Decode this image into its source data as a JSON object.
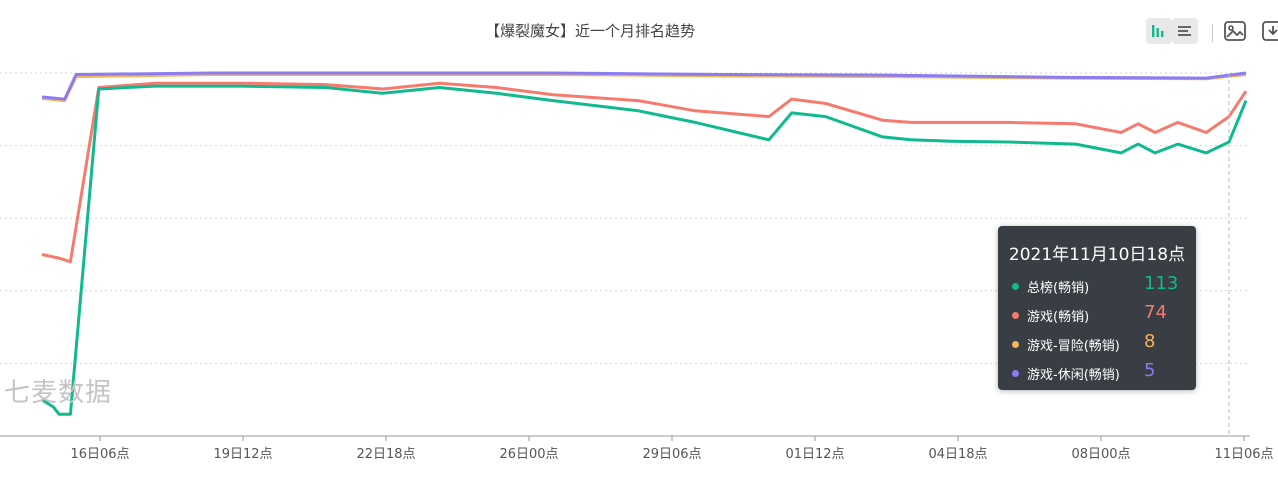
{
  "title": "【爆裂魔女】近一个月排名趋势",
  "watermark": "七麦数据",
  "toolbox": {
    "icons": [
      "bar-chart-icon",
      "list-icon",
      "image-icon",
      "download-icon"
    ]
  },
  "tooltip": {
    "title": "2021年11月10日18点",
    "rows": [
      {
        "name": "总榜(畅销)",
        "value": "113",
        "color": "#11b98e"
      },
      {
        "name": "游戏(畅销)",
        "value": "74",
        "color": "#f47b6e"
      },
      {
        "name": "游戏-冒险(畅销)",
        "value": "8",
        "color": "#f5b35a"
      },
      {
        "name": "游戏-休闲(畅销)",
        "value": "5",
        "color": "#8b7cf0"
      }
    ]
  },
  "chart_data": {
    "type": "line",
    "title": "【爆裂魔女】近一个月排名趋势",
    "x_ticks": [
      "16日06点",
      "19日12点",
      "22日18点",
      "26日00点",
      "29日06点",
      "01日12点",
      "04日18点",
      "08日00点",
      "11日06点"
    ],
    "y_inverse": true,
    "ylim": [
      0,
      5
    ],
    "grid": true,
    "series": [
      {
        "name": "总榜(畅销)",
        "color": "#11b98e",
        "x": [
          0,
          2,
          3,
          5,
          10,
          20,
          35,
          50,
          60,
          70,
          80,
          90,
          105,
          110,
          115,
          128,
          132,
          138,
          148,
          153,
          160,
          170,
          182,
          190,
          193,
          196,
          200,
          205,
          209,
          212
        ],
        "values": [
          4.5,
          4.6,
          4.7,
          4.7,
          0.22,
          0.18,
          0.18,
          0.2,
          0.28,
          0.2,
          0.28,
          0.38,
          0.52,
          0.6,
          0.68,
          0.92,
          0.55,
          0.6,
          0.88,
          0.92,
          0.94,
          0.95,
          0.98,
          1.1,
          0.98,
          1.1,
          0.98,
          1.1,
          0.95,
          0.38
        ]
      },
      {
        "name": "游戏(畅销)",
        "color": "#f47b6e",
        "x": [
          0,
          3,
          5,
          10,
          20,
          35,
          50,
          60,
          70,
          80,
          90,
          105,
          110,
          115,
          128,
          132,
          138,
          148,
          153,
          160,
          170,
          182,
          190,
          193,
          196,
          200,
          205,
          209,
          212
        ],
        "values": [
          2.5,
          2.55,
          2.6,
          0.2,
          0.14,
          0.14,
          0.16,
          0.22,
          0.14,
          0.2,
          0.3,
          0.38,
          0.45,
          0.52,
          0.6,
          0.36,
          0.42,
          0.65,
          0.68,
          0.68,
          0.68,
          0.7,
          0.82,
          0.7,
          0.82,
          0.68,
          0.82,
          0.6,
          0.25
        ]
      },
      {
        "name": "游戏-冒险(畅销)",
        "color": "#f5b35a",
        "x": [
          0,
          4,
          6,
          30,
          60,
          90,
          120,
          150,
          180,
          205,
          212
        ],
        "values": [
          0.35,
          0.38,
          0.05,
          0.02,
          0.02,
          0.02,
          0.04,
          0.05,
          0.07,
          0.08,
          0.02
        ]
      },
      {
        "name": "游戏-休闲(畅销)",
        "color": "#8b7cf0",
        "x": [
          0,
          4,
          6,
          30,
          60,
          90,
          120,
          150,
          180,
          205,
          212
        ],
        "values": [
          0.33,
          0.36,
          0.02,
          0.0,
          0.0,
          0.0,
          0.02,
          0.03,
          0.06,
          0.07,
          0.0
        ]
      }
    ]
  }
}
